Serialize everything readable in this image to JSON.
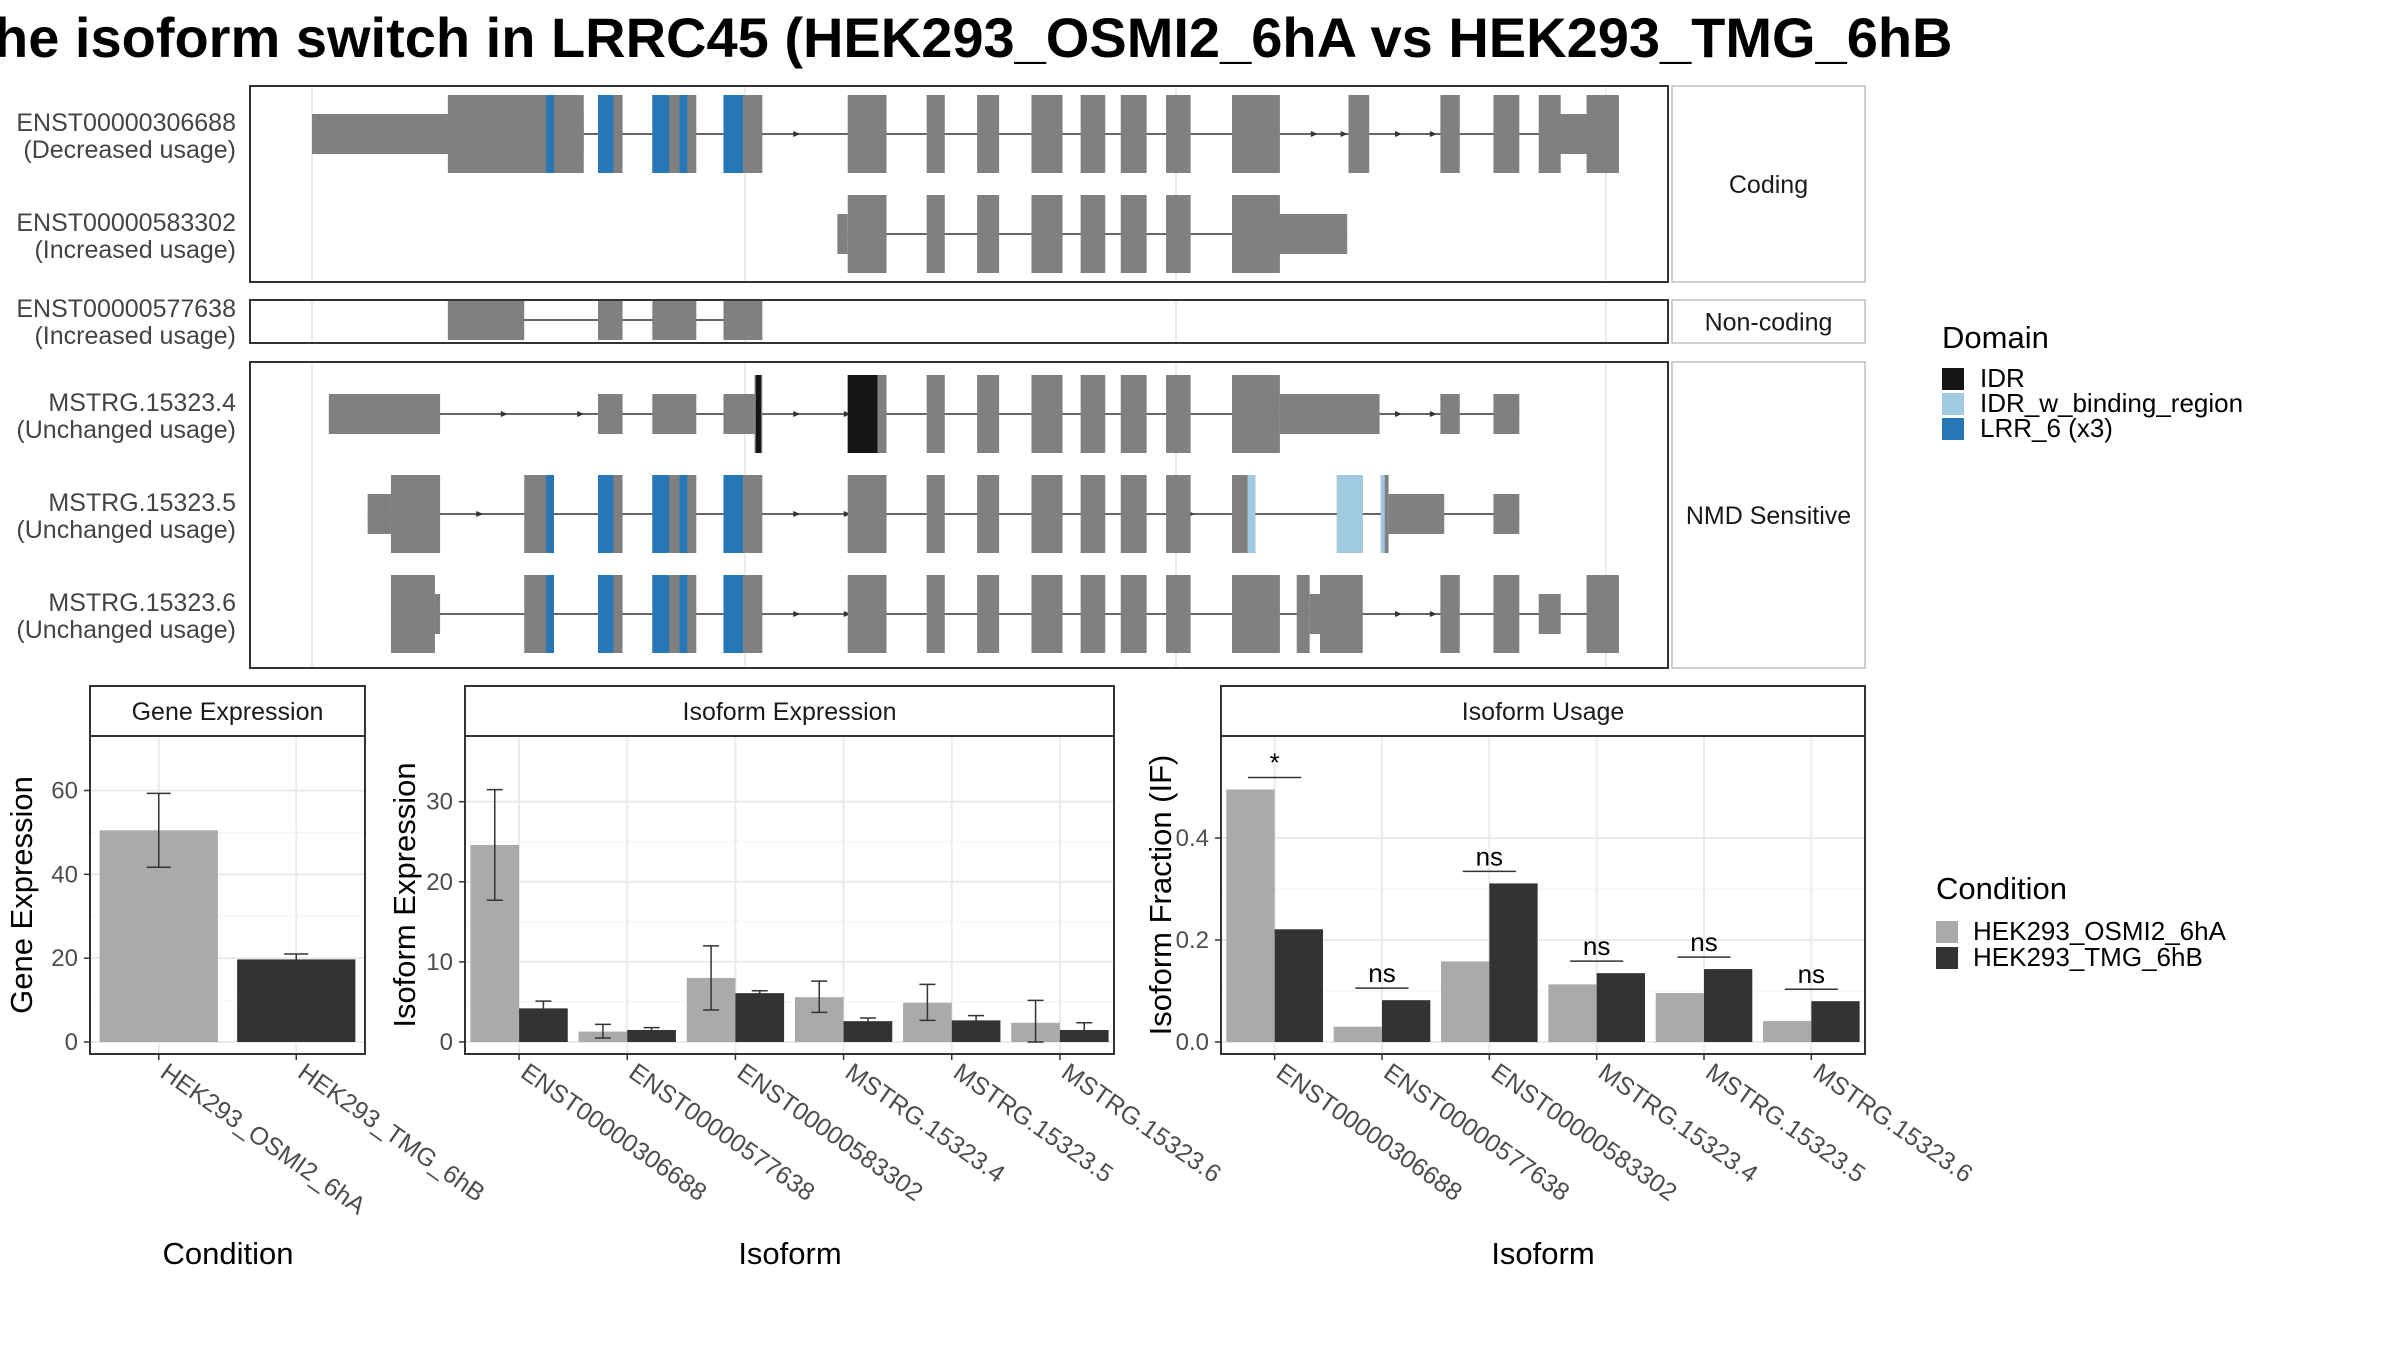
{
  "title": "he isoform switch in LRRC45 (HEK293_OSMI2_6hA vs HEK293_TMG_6hB",
  "colors": {
    "exon": "#808080",
    "IDR": "#151515",
    "IDR_w_binding_region": "#9fcae1",
    "LRR_6 (x3)": "#2776b5",
    "cond_A": "#aaaaaa",
    "cond_B": "#333333",
    "strip_fill": "#ffffff",
    "grid": "#ebebeb"
  },
  "gene_structure": {
    "groups": [
      {
        "strip": "Coding",
        "isoforms": [
          {
            "id": "ENST00000306688",
            "usage": "(Decreased usage)",
            "utr": [
              [
                0.0,
                0.21
              ],
              [
                0.95,
                0.99
              ]
            ],
            "cds": [
              [
                0.21,
                0.105
              ],
              [
                0.164,
                0.187
              ],
              [
                0.221,
                0.24
              ],
              [
                0.263,
                0.297
              ],
              [
                0.318,
                0.348
              ],
              [
                0.414,
                0.444
              ],
              [
                0.475,
                0.489
              ],
              [
                0.514,
                0.531
              ],
              [
                0.556,
                0.58
              ],
              [
                0.594,
                0.613
              ],
              [
                0.625,
                0.645
              ],
              [
                0.66,
                0.679
              ],
              [
                0.711,
                0.748
              ],
              [
                0.801,
                0.817
              ],
              [
                0.872,
                0.887
              ],
              [
                0.913,
                0.933
              ],
              [
                0.948,
                0.965
              ],
              [
                0.985,
                1.01
              ]
            ],
            "domains": [
              {
                "d": "LRR_6 (x3)",
                "s": 0.181,
                "e": 0.187
              },
              {
                "d": "LRR_6 (x3)",
                "s": 0.221,
                "e": 0.233
              },
              {
                "d": "LRR_6 (x3)",
                "s": 0.263,
                "e": 0.276
              },
              {
                "d": "LRR_6 (x3)",
                "s": 0.284,
                "e": 0.29
              },
              {
                "d": "LRR_6 (x3)",
                "s": 0.318,
                "e": 0.333
              }
            ],
            "arrows": [
              0.375,
              0.775,
              0.798,
              0.84,
              0.867
            ]
          },
          {
            "id": "ENST00000583302",
            "usage": "(Increased usage)",
            "utr": [
              [
                0.406,
                0.414
              ],
              [
                0.711,
                0.748
              ],
              [
                0.748,
                0.8
              ]
            ],
            "cds": [
              [
                0.414,
                0.444
              ],
              [
                0.475,
                0.489
              ],
              [
                0.514,
                0.531
              ],
              [
                0.556,
                0.58
              ],
              [
                0.594,
                0.613
              ],
              [
                0.625,
                0.645
              ],
              [
                0.66,
                0.679
              ],
              [
                0.711,
                0.748
              ]
            ],
            "domains": [],
            "arrows": []
          }
        ]
      },
      {
        "strip": "Non-coding",
        "isoforms": [
          {
            "id": "ENST00000577638",
            "usage": "(Increased usage)",
            "utr": [
              [
                0.105,
                0.164
              ],
              [
                0.221,
                0.24
              ],
              [
                0.263,
                0.297
              ],
              [
                0.318,
                0.348
              ]
            ],
            "cds": [],
            "domains": [],
            "arrows": []
          }
        ]
      },
      {
        "strip": "NMD Sensitive",
        "isoforms": [
          {
            "id": "MSTRG.15323.4",
            "usage": "(Unchanged usage)",
            "utr": [
              [
                0.013,
                0.099
              ],
              [
                0.221,
                0.24
              ],
              [
                0.263,
                0.297
              ],
              [
                0.318,
                0.342
              ],
              [
                0.748,
                0.825
              ],
              [
                0.872,
                0.887
              ],
              [
                0.913,
                0.933
              ]
            ],
            "cds": [
              [
                0.342,
                0.348
              ],
              [
                0.414,
                0.444
              ],
              [
                0.475,
                0.489
              ],
              [
                0.514,
                0.531
              ],
              [
                0.556,
                0.58
              ],
              [
                0.594,
                0.613
              ],
              [
                0.625,
                0.645
              ],
              [
                0.66,
                0.679
              ],
              [
                0.711,
                0.748
              ]
            ],
            "domains": [
              {
                "d": "IDR",
                "s": 0.343,
                "e": 0.347
              },
              {
                "d": "IDR",
                "s": 0.414,
                "e": 0.437
              }
            ],
            "arrows": [
              0.149,
              0.208,
              0.375,
              0.414,
              0.84,
              0.867
            ]
          },
          {
            "id": "MSTRG.15323.5",
            "usage": "(Unchanged usage)",
            "utr": [
              [
                0.043,
                0.061
              ],
              [
                0.832,
                0.875
              ],
              [
                0.913,
                0.933
              ]
            ],
            "cds": [
              [
                0.061,
                0.099
              ],
              [
                0.164,
                0.187
              ],
              [
                0.221,
                0.24
              ],
              [
                0.263,
                0.297
              ],
              [
                0.318,
                0.348
              ],
              [
                0.414,
                0.444
              ],
              [
                0.475,
                0.489
              ],
              [
                0.514,
                0.531
              ],
              [
                0.556,
                0.58
              ],
              [
                0.594,
                0.613
              ],
              [
                0.625,
                0.645
              ],
              [
                0.66,
                0.679
              ],
              [
                0.711,
                0.729
              ],
              [
                0.792,
                0.812
              ],
              [
                0.826,
                0.832
              ]
            ],
            "domains": [
              {
                "d": "LRR_6 (x3)",
                "s": 0.181,
                "e": 0.187
              },
              {
                "d": "LRR_6 (x3)",
                "s": 0.221,
                "e": 0.233
              },
              {
                "d": "LRR_6 (x3)",
                "s": 0.263,
                "e": 0.276
              },
              {
                "d": "LRR_6 (x3)",
                "s": 0.284,
                "e": 0.29
              },
              {
                "d": "LRR_6 (x3)",
                "s": 0.318,
                "e": 0.333
              },
              {
                "d": "IDR_w_binding_region",
                "s": 0.723,
                "e": 0.729
              },
              {
                "d": "IDR_w_binding_region",
                "s": 0.792,
                "e": 0.812
              },
              {
                "d": "IDR_w_binding_region",
                "s": 0.826,
                "e": 0.829
              }
            ],
            "arrows": [
              0.13,
              0.375,
              0.414,
              0.56,
              0.68
            ]
          },
          {
            "id": "MSTRG.15323.6",
            "usage": "(Unchanged usage)",
            "utr": [
              [
                0.095,
                0.099
              ],
              [
                0.771,
                0.779
              ],
              [
                0.948,
                0.965
              ]
            ],
            "cds": [
              [
                0.061,
                0.095
              ],
              [
                0.164,
                0.187
              ],
              [
                0.221,
                0.24
              ],
              [
                0.263,
                0.297
              ],
              [
                0.318,
                0.348
              ],
              [
                0.414,
                0.444
              ],
              [
                0.475,
                0.489
              ],
              [
                0.514,
                0.531
              ],
              [
                0.556,
                0.58
              ],
              [
                0.594,
                0.613
              ],
              [
                0.625,
                0.645
              ],
              [
                0.66,
                0.679
              ],
              [
                0.711,
                0.748
              ],
              [
                0.761,
                0.771
              ],
              [
                0.779,
                0.812
              ],
              [
                0.872,
                0.887
              ],
              [
                0.913,
                0.933
              ],
              [
                0.985,
                1.01
              ]
            ],
            "domains": [
              {
                "d": "LRR_6 (x3)",
                "s": 0.181,
                "e": 0.187
              },
              {
                "d": "LRR_6 (x3)",
                "s": 0.221,
                "e": 0.233
              },
              {
                "d": "LRR_6 (x3)",
                "s": 0.263,
                "e": 0.276
              },
              {
                "d": "LRR_6 (x3)",
                "s": 0.284,
                "e": 0.29
              },
              {
                "d": "LRR_6 (x3)",
                "s": 0.318,
                "e": 0.333
              }
            ],
            "arrows": [
              0.375,
              0.414,
              0.798,
              0.84,
              0.867
            ]
          }
        ]
      }
    ]
  },
  "legends": {
    "domain": {
      "title": "Domain",
      "items": [
        "IDR",
        "IDR_w_binding_region",
        "LRR_6 (x3)"
      ]
    },
    "condition": {
      "title": "Condition",
      "items": [
        "HEK293_OSMI2_6hA",
        "HEK293_TMG_6hB"
      ]
    }
  },
  "chart_data": [
    {
      "type": "bar",
      "title": "Gene Expression",
      "xlabel": "Condition",
      "ylabel": "Gene Expression",
      "categories": [
        "HEK293_OSMI2_6hA",
        "HEK293_TMG_6hB"
      ],
      "values": [
        50.5,
        19.7
      ],
      "error": [
        [
          41.7,
          59.3
        ],
        [
          18.5,
          21.0
        ]
      ],
      "yticks": [
        0,
        20,
        40,
        60
      ],
      "ylim": [
        0,
        73
      ],
      "grid": true
    },
    {
      "type": "bar",
      "title": "Isoform Expression",
      "xlabel": "Isoform",
      "ylabel": "Isoform Expression",
      "categories": [
        "ENST00000306688",
        "ENST00000577638",
        "ENST00000583302",
        "MSTRG.15323.4",
        "MSTRG.15323.5",
        "MSTRG.15323.6"
      ],
      "series": [
        {
          "name": "HEK293_OSMI2_6hA",
          "values": [
            24.6,
            1.3,
            8.0,
            5.6,
            4.9,
            2.4
          ],
          "error": [
            [
              17.7,
              31.5
            ],
            [
              0.5,
              2.2
            ],
            [
              4.0,
              12.0
            ],
            [
              3.7,
              7.6
            ],
            [
              2.7,
              7.2
            ],
            [
              0.0,
              5.2
            ]
          ]
        },
        {
          "name": "HEK293_TMG_6hB",
          "values": [
            4.2,
            1.5,
            6.1,
            2.6,
            2.7,
            1.5
          ],
          "error": [
            [
              3.4,
              5.1
            ],
            [
              1.3,
              1.8
            ],
            [
              5.8,
              6.4
            ],
            [
              2.2,
              3.0
            ],
            [
              2.1,
              3.3
            ],
            [
              0.7,
              2.4
            ]
          ]
        }
      ],
      "yticks": [
        0,
        10,
        20,
        30
      ],
      "ylim": [
        0,
        38.2
      ],
      "grid": true
    },
    {
      "type": "bar",
      "title": "Isoform Usage",
      "xlabel": "Isoform",
      "ylabel": "Isoform Fraction (IF)",
      "categories": [
        "ENST00000306688",
        "ENST00000577638",
        "ENST00000583302",
        "MSTRG.15323.4",
        "MSTRG.15323.5",
        "MSTRG.15323.6"
      ],
      "series": [
        {
          "name": "HEK293_OSMI2_6hA",
          "values": [
            0.495,
            0.03,
            0.158,
            0.113,
            0.096,
            0.041
          ]
        },
        {
          "name": "HEK293_TMG_6hB",
          "values": [
            0.221,
            0.082,
            0.311,
            0.135,
            0.143,
            0.08
          ]
        }
      ],
      "significance": [
        "*",
        "ns",
        "ns",
        "ns",
        "ns",
        "ns"
      ],
      "yticks": [
        0.0,
        0.2,
        0.4
      ],
      "ytick_labels": [
        "0.0",
        "0.2",
        "0.4"
      ],
      "ylim": [
        0,
        0.6
      ],
      "grid": true
    }
  ]
}
